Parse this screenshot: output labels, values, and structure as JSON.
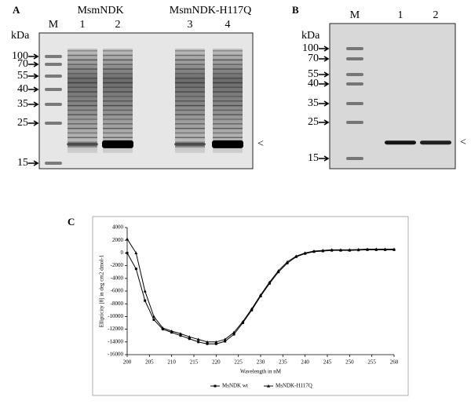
{
  "panel_a": {
    "label": "A",
    "groups": [
      "MsmNDK",
      "MsmNDK-H117Q"
    ],
    "unit": "kDa",
    "lanes": [
      "M",
      "1",
      "2",
      "3",
      "4"
    ],
    "markers": [
      "100",
      "70",
      "55",
      "40",
      "35",
      "25",
      "15"
    ],
    "arrow": "<"
  },
  "panel_b": {
    "label": "B",
    "unit": "kDa",
    "lanes": [
      "M",
      "1",
      "2"
    ],
    "markers": [
      "100",
      "70",
      "55",
      "40",
      "35",
      "25",
      "15"
    ],
    "arrow": "<"
  },
  "chart_data": {
    "type": "line",
    "label": "C",
    "x_label": "Wavelength in nM",
    "y_label": "Ellipticity [θ] in deg cm2 dmol-1",
    "x": [
      200,
      202,
      204,
      206,
      208,
      210,
      212,
      214,
      216,
      218,
      220,
      222,
      224,
      226,
      228,
      230,
      232,
      234,
      236,
      238,
      240,
      242,
      244,
      246,
      248,
      250,
      252,
      254,
      256,
      258,
      260
    ],
    "series": [
      {
        "name": "MsNDK wt",
        "color": "#000000",
        "marker": "square",
        "values": [
          0,
          -2500,
          -7500,
          -10500,
          -12000,
          -12500,
          -13000,
          -13500,
          -14000,
          -14300,
          -14300,
          -13900,
          -12800,
          -11000,
          -9000,
          -6800,
          -4800,
          -3000,
          -1600,
          -600,
          -100,
          200,
          300,
          400,
          400,
          400,
          450,
          500,
          500,
          500,
          500
        ]
      },
      {
        "name": "MsNDK-H117Q",
        "color": "#000000",
        "marker": "triangle",
        "values": [
          2200,
          0,
          -6000,
          -10000,
          -11800,
          -12300,
          -12700,
          -13200,
          -13600,
          -14000,
          -14000,
          -13600,
          -12500,
          -10800,
          -8800,
          -6600,
          -4600,
          -2800,
          -1400,
          -500,
          0,
          300,
          400,
          500,
          500,
          500,
          550,
          600,
          600,
          600,
          600
        ]
      }
    ],
    "xlim": [
      200,
      260
    ],
    "xticks": [
      200,
      205,
      210,
      215,
      220,
      225,
      230,
      235,
      240,
      245,
      250,
      255,
      260
    ],
    "ylim": [
      -16000,
      4000
    ],
    "yticks": [
      -16000,
      -14000,
      -12000,
      -10000,
      -8000,
      -6000,
      -4000,
      -2000,
      0,
      2000,
      4000
    ]
  }
}
